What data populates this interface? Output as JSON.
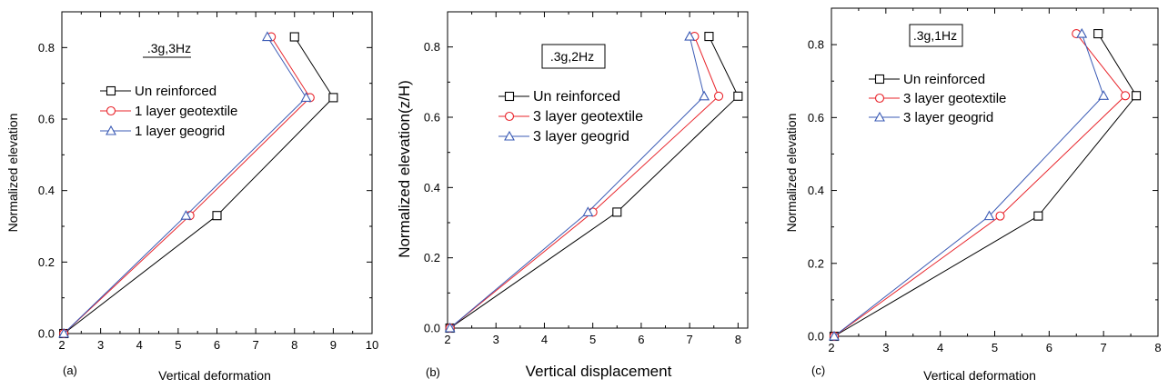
{
  "colors": {
    "unreinforced": "#000000",
    "geotextile": "#e8232a",
    "geogrid": "#3b5bb5"
  },
  "chart_data": [
    {
      "type": "line",
      "panel": "(a)",
      "annotation": ".3g,3Hz",
      "xlabel": "Vertical deformation",
      "ylabel": "Normalized elevation",
      "xlim": [
        2,
        10
      ],
      "ylim": [
        0,
        0.9
      ],
      "xticks": [
        "2",
        "3",
        "4",
        "5",
        "6",
        "7",
        "8",
        "9",
        "10"
      ],
      "yticks": [
        "0.0",
        "0.2",
        "0.4",
        "0.6",
        "0.8"
      ],
      "grid": false,
      "legend_position": "center-left",
      "series": [
        {
          "name": "Un reinforced",
          "marker": "square",
          "color": "#000000",
          "points": [
            [
              2.05,
              0.0
            ],
            [
              6.0,
              0.33
            ],
            [
              9.0,
              0.66
            ],
            [
              8.0,
              0.83
            ]
          ]
        },
        {
          "name": "1 layer geotextile",
          "marker": "circle",
          "color": "#e8232a",
          "points": [
            [
              2.05,
              0.0
            ],
            [
              5.3,
              0.33
            ],
            [
              8.4,
              0.66
            ],
            [
              7.4,
              0.83
            ]
          ]
        },
        {
          "name": "1 layer geogrid",
          "marker": "triangle",
          "color": "#3b5bb5",
          "points": [
            [
              2.05,
              0.0
            ],
            [
              5.2,
              0.33
            ],
            [
              8.3,
              0.66
            ],
            [
              7.3,
              0.83
            ]
          ]
        }
      ]
    },
    {
      "type": "line",
      "panel": "(b)",
      "annotation": ".3g,2Hz",
      "xlabel": "Vertical displacement",
      "ylabel": "Normalized elevation(z/H)",
      "xlim": [
        2,
        8.2
      ],
      "ylim": [
        0,
        0.9
      ],
      "xticks": [
        "2",
        "3",
        "4",
        "5",
        "6",
        "7",
        "8"
      ],
      "yticks": [
        "0.0",
        "0.2",
        "0.4",
        "0.6",
        "0.8"
      ],
      "grid": false,
      "legend_position": "center-left",
      "series": [
        {
          "name": "Un reinforced",
          "marker": "square",
          "color": "#000000",
          "points": [
            [
              2.05,
              0.0
            ],
            [
              5.5,
              0.33
            ],
            [
              8.0,
              0.66
            ],
            [
              7.4,
              0.83
            ]
          ]
        },
        {
          "name": "3 layer geotextile",
          "marker": "circle",
          "color": "#e8232a",
          "points": [
            [
              2.05,
              0.0
            ],
            [
              5.0,
              0.33
            ],
            [
              7.6,
              0.66
            ],
            [
              7.1,
              0.83
            ]
          ]
        },
        {
          "name": "3 layer geogrid",
          "marker": "triangle",
          "color": "#3b5bb5",
          "points": [
            [
              2.05,
              0.0
            ],
            [
              4.9,
              0.33
            ],
            [
              7.3,
              0.66
            ],
            [
              7.0,
              0.83
            ]
          ]
        }
      ]
    },
    {
      "type": "line",
      "panel": "(c)",
      "annotation": ".3g,1Hz",
      "xlabel": "Vertical deformation",
      "ylabel": "Normalized elevation",
      "xlim": [
        2,
        8
      ],
      "ylim": [
        0,
        0.9
      ],
      "xticks": [
        "2",
        "3",
        "4",
        "5",
        "6",
        "7",
        "8"
      ],
      "yticks": [
        "0.0",
        "0.2",
        "0.4",
        "0.6",
        "0.8"
      ],
      "grid": false,
      "legend_position": "top-left",
      "series": [
        {
          "name": "Un reinforced",
          "marker": "square",
          "color": "#000000",
          "points": [
            [
              2.05,
              0.0
            ],
            [
              5.8,
              0.33
            ],
            [
              7.6,
              0.66
            ],
            [
              6.9,
              0.83
            ]
          ]
        },
        {
          "name": "3 layer geotextile",
          "marker": "circle",
          "color": "#e8232a",
          "points": [
            [
              2.05,
              0.0
            ],
            [
              5.1,
              0.33
            ],
            [
              7.4,
              0.66
            ],
            [
              6.5,
              0.83
            ]
          ]
        },
        {
          "name": "3 layer geogrid",
          "marker": "triangle",
          "color": "#3b5bb5",
          "points": [
            [
              2.05,
              0.0
            ],
            [
              4.9,
              0.33
            ],
            [
              7.0,
              0.66
            ],
            [
              6.6,
              0.83
            ]
          ]
        }
      ]
    }
  ]
}
